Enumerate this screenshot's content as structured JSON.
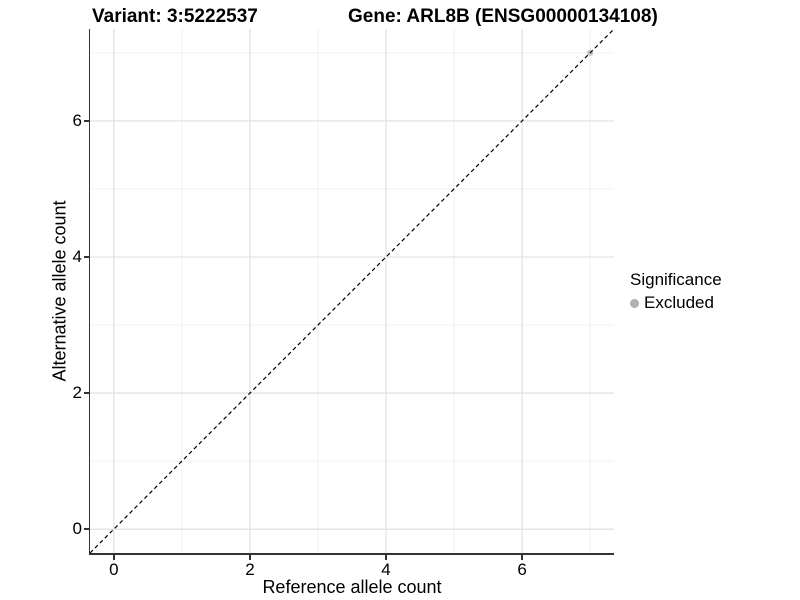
{
  "titles": {
    "variant": "Variant: 3:5222537",
    "gene": "Gene: ARL8B (ENSG00000134108)"
  },
  "axes": {
    "x_label": "Reference allele count",
    "y_label": "Alternative allele count"
  },
  "legend": {
    "title": "Significance",
    "items": [
      {
        "label": "Excluded",
        "color": "#b0b0b0"
      }
    ]
  },
  "colors": {
    "background": "#ffffff",
    "axis": "#333333",
    "grid_major": "#e3e3e3",
    "grid_minor": "#f0f0f0",
    "identity_line": "#000000",
    "excluded_point": "#c0c0c0",
    "text": "#000000"
  },
  "chart_data": {
    "type": "scatter",
    "title": "Variant: 3:5222537 — Gene: ARL8B (ENSG00000134108)",
    "xlabel": "Reference allele count",
    "ylabel": "Alternative allele count",
    "xlim": [
      -0.35,
      7.35
    ],
    "ylim": [
      -0.35,
      7.35
    ],
    "x_ticks": [
      0,
      2,
      4,
      6
    ],
    "y_ticks": [
      0,
      2,
      4,
      6
    ],
    "x_minor": [
      1,
      3,
      5,
      7
    ],
    "y_minor": [
      1,
      3,
      5,
      7
    ],
    "grid": true,
    "legend_position": "right",
    "series": [
      {
        "name": "Excluded",
        "color": "#c0c0c0",
        "points": [
          [
            7,
            7
          ]
        ]
      }
    ],
    "reference_line": {
      "kind": "identity",
      "style": "dashed",
      "color": "#000000",
      "dash": [
        4,
        3
      ]
    }
  }
}
